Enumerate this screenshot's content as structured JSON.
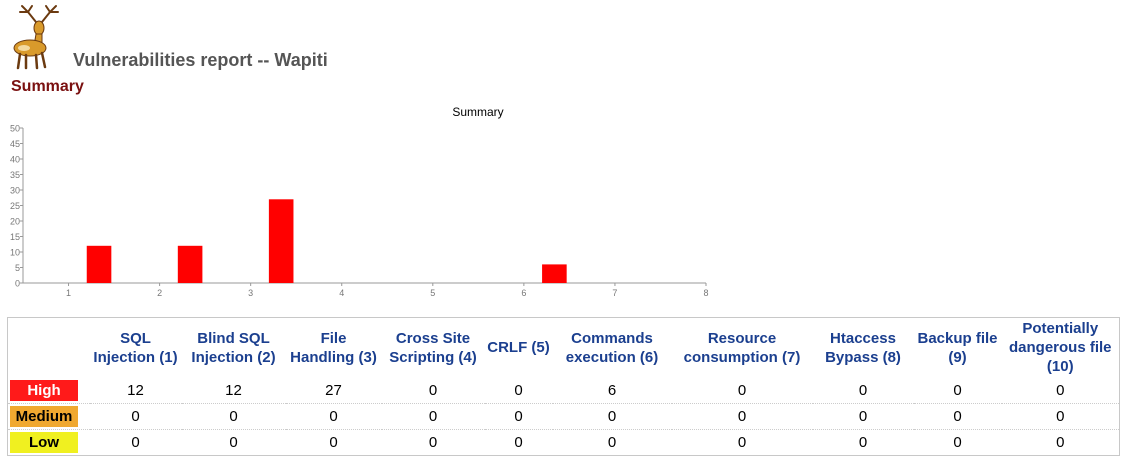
{
  "header": {
    "title": "Vulnerabilities report -- Wapiti",
    "summary_heading": "Summary"
  },
  "chart_data": {
    "type": "bar",
    "title": "Summary",
    "xlabel": "",
    "ylabel": "",
    "xlim": [
      0.5,
      8
    ],
    "ylim": [
      0,
      50
    ],
    "x_ticks": [
      "1",
      "2",
      "3",
      "4",
      "5",
      "6",
      "7",
      "8"
    ],
    "y_ticks": [
      0,
      5,
      10,
      15,
      20,
      25,
      30,
      35,
      40,
      45,
      50
    ],
    "grid": false,
    "bars": [
      {
        "x": 1,
        "value": 12
      },
      {
        "x": 2,
        "value": 12
      },
      {
        "x": 3,
        "value": 27
      },
      {
        "x": 6,
        "value": 6
      }
    ],
    "bar_color": "#ff0000"
  },
  "table": {
    "columns": [
      "SQL Injection (1)",
      "Blind SQL Injection (2)",
      "File Handling (3)",
      "Cross Site Scripting (4)",
      "CRLF (5)",
      "Commands execution (6)",
      "Resource consumption (7)",
      "Htaccess Bypass (8)",
      "Backup file (9)",
      "Potentially dangerous file (10)"
    ],
    "rows": [
      {
        "severity": "High",
        "color": "#ff1a1a",
        "values": [
          "12",
          "12",
          "27",
          "0",
          "0",
          "6",
          "0",
          "0",
          "0",
          "0"
        ]
      },
      {
        "severity": "Medium",
        "color": "#f0a830",
        "values": [
          "0",
          "0",
          "0",
          "0",
          "0",
          "0",
          "0",
          "0",
          "0",
          "0"
        ]
      },
      {
        "severity": "Low",
        "color": "#f0f020",
        "values": [
          "0",
          "0",
          "0",
          "0",
          "0",
          "0",
          "0",
          "0",
          "0",
          "0"
        ]
      }
    ]
  }
}
